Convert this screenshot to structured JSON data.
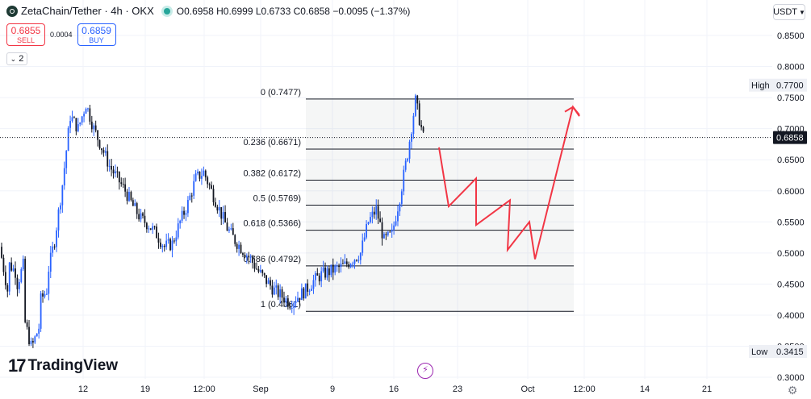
{
  "header": {
    "symbol": "ZetaChain/Tether · 4h · OKX",
    "open": "O0.6958",
    "high": "H0.6999",
    "low": "L0.6733",
    "close": "C0.6858",
    "change": "−0.0095 (−1.37%)"
  },
  "trade": {
    "sell_price": "0.6855",
    "sell_label": "SELL",
    "spread": "0.0004",
    "buy_price": "0.6859",
    "buy_label": "BUY"
  },
  "indicators_toggle": "2",
  "currency": "USDT",
  "brand": "TradingView",
  "colors": {
    "up": "#2962ff",
    "down": "#131722",
    "projection": "#f23645",
    "fib_line": "#131722",
    "price_label_bg": "#131722"
  },
  "chart_data": {
    "type": "candlestick",
    "y_axis": {
      "ticks": [
        0.85,
        0.8,
        0.75,
        0.7,
        0.65,
        0.6,
        0.55,
        0.5,
        0.45,
        0.4,
        0.35,
        0.3
      ],
      "tick_labels": [
        "0.8500",
        "0.8000",
        "0.7500",
        "0.7000",
        "0.6500",
        "0.6000",
        "0.5500",
        "0.5000",
        "0.4500",
        "0.4000",
        "0.3500",
        "0.3000"
      ],
      "range": [
        0.297,
        0.866
      ]
    },
    "x_axis": {
      "ticks": [
        "12",
        "19",
        "12:00",
        "Sep",
        "9",
        "16",
        "23",
        "Oct",
        "12:00",
        "14",
        "21"
      ]
    },
    "markers": [
      {
        "label": "High",
        "value": "0.7700",
        "y": 0.77
      },
      {
        "label": "Low",
        "value": "0.3415",
        "y": 0.3415
      }
    ],
    "last_price": {
      "value": "0.6858",
      "y": 0.6858
    },
    "fibonacci": [
      {
        "label": "0 (0.7477)",
        "level": 0.7477
      },
      {
        "label": "0.236 (0.6671)",
        "level": 0.6671
      },
      {
        "label": "0.382 (0.6172)",
        "level": 0.6172
      },
      {
        "label": "0.5 (0.5769)",
        "level": 0.5769
      },
      {
        "label": "0.618 (0.5366)",
        "level": 0.5366
      },
      {
        "label": "0.786 (0.4792)",
        "level": 0.4792
      },
      {
        "label": "1 (0.4061)",
        "level": 0.4061
      }
    ],
    "price_path": [
      [
        0.51,
        0.44
      ],
      [
        0.485,
        0.47
      ],
      [
        0.44,
        0.48
      ],
      [
        0.4,
        0.35
      ],
      [
        0.345,
        0.38
      ],
      [
        0.42,
        0.44
      ],
      [
        0.46,
        0.52
      ],
      [
        0.52,
        0.61
      ],
      [
        0.61,
        0.72
      ],
      [
        0.72,
        0.7
      ],
      [
        0.7,
        0.74
      ],
      [
        0.74,
        0.7
      ],
      [
        0.7,
        0.67
      ],
      [
        0.67,
        0.64
      ],
      [
        0.64,
        0.62
      ],
      [
        0.62,
        0.6
      ],
      [
        0.6,
        0.575
      ],
      [
        0.575,
        0.555
      ],
      [
        0.555,
        0.545
      ],
      [
        0.545,
        0.53
      ],
      [
        0.53,
        0.51
      ],
      [
        0.51,
        0.515
      ],
      [
        0.515,
        0.55
      ],
      [
        0.55,
        0.58
      ],
      [
        0.58,
        0.62
      ],
      [
        0.62,
        0.63
      ],
      [
        0.63,
        0.6
      ],
      [
        0.6,
        0.57
      ],
      [
        0.57,
        0.54
      ],
      [
        0.54,
        0.52
      ],
      [
        0.52,
        0.505
      ],
      [
        0.505,
        0.49
      ],
      [
        0.49,
        0.47
      ],
      [
        0.47,
        0.455
      ],
      [
        0.455,
        0.44
      ],
      [
        0.44,
        0.43
      ],
      [
        0.43,
        0.42
      ],
      [
        0.42,
        0.43
      ],
      [
        0.43,
        0.44
      ],
      [
        0.44,
        0.455
      ],
      [
        0.455,
        0.465
      ],
      [
        0.465,
        0.47
      ],
      [
        0.47,
        0.475
      ],
      [
        0.475,
        0.48
      ],
      [
        0.48,
        0.49
      ],
      [
        0.49,
        0.5
      ],
      [
        0.5,
        0.55
      ],
      [
        0.55,
        0.57
      ],
      [
        0.57,
        0.52
      ],
      [
        0.52,
        0.53
      ],
      [
        0.53,
        0.59
      ],
      [
        0.59,
        0.66
      ],
      [
        0.66,
        0.745
      ],
      [
        0.745,
        0.686
      ]
    ],
    "projection": [
      0.67,
      0.575,
      0.62,
      0.545,
      0.585,
      0.505,
      0.55,
      0.49,
      0.735,
      0.72
    ]
  }
}
